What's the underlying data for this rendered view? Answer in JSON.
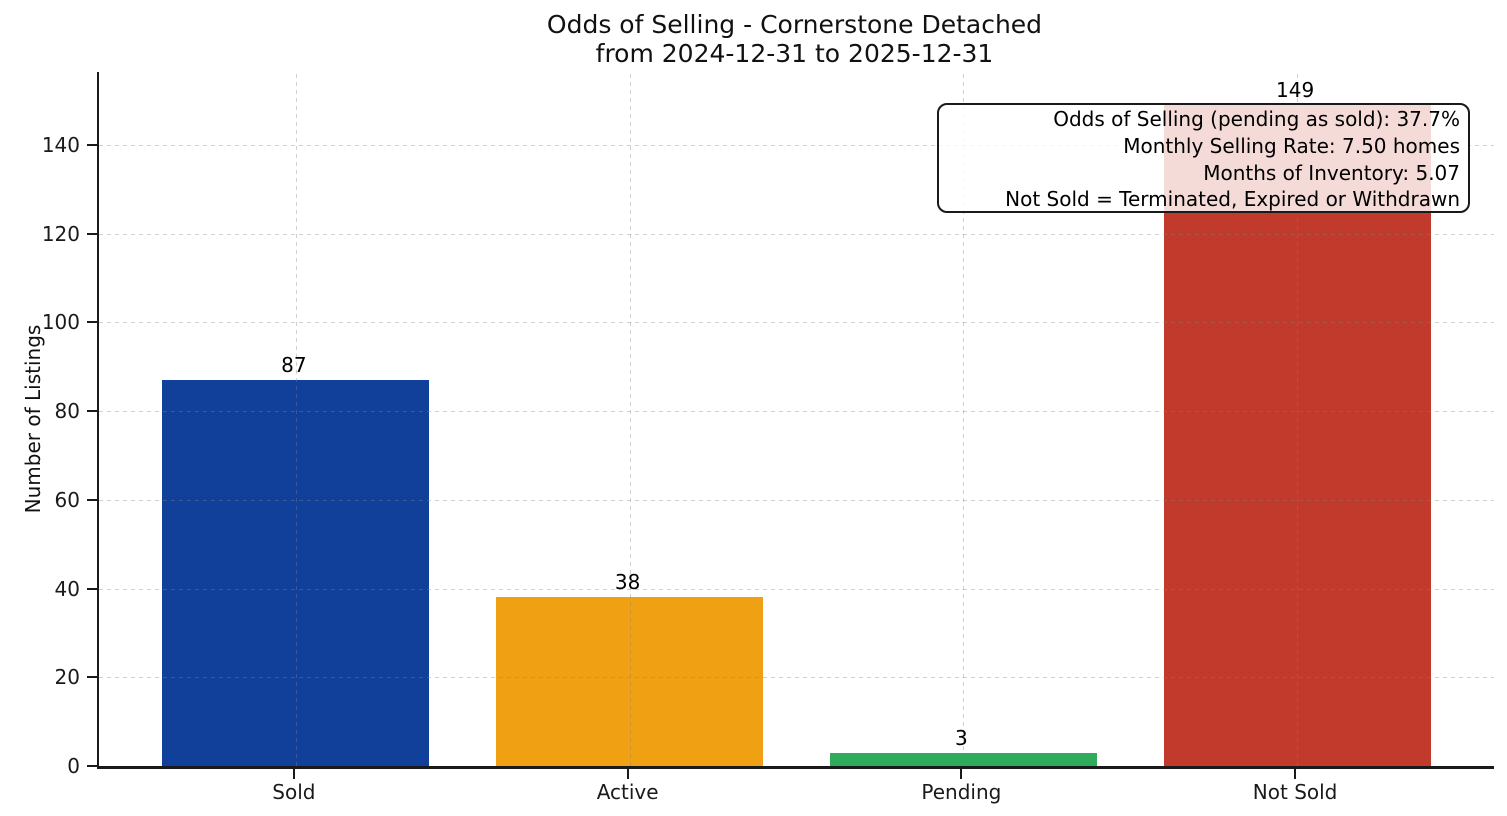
{
  "chart_data": {
    "type": "bar",
    "title": "Odds of Selling - Cornerstone Detached",
    "subtitle": "from 2024-12-31 to 2025-12-31",
    "categories": [
      "Sold",
      "Active",
      "Pending",
      "Not Sold"
    ],
    "values": [
      87,
      38,
      3,
      149
    ],
    "bar_value_labels": [
      "87",
      "38",
      "3",
      "149"
    ],
    "bar_colors": [
      "#11409b",
      "#f0a113",
      "#2eac5c",
      "#c23a2b"
    ],
    "xlabel": "",
    "ylabel": "Number of Listings",
    "yticks": [
      0,
      20,
      40,
      60,
      80,
      100,
      120,
      140
    ],
    "ylim": [
      0,
      156.45
    ],
    "grid": "dashed, both axes, drawn over bars",
    "legend": "none",
    "annotation": {
      "lines": [
        "Odds of Selling (pending as sold): 37.7%",
        "Monthly Selling Rate: 7.50 homes",
        "Months of Inventory: 5.07",
        "Not Sold = Terminated, Expired or Withdrawn"
      ]
    }
  },
  "colors": {
    "background": "#ffffff",
    "axis": "#1a1a1a",
    "text": "#111111",
    "gridline": "#dcdcdc",
    "annotation_border": "#1a1a1a",
    "annotation_background": "rgba(255,255,255,0.82)"
  }
}
